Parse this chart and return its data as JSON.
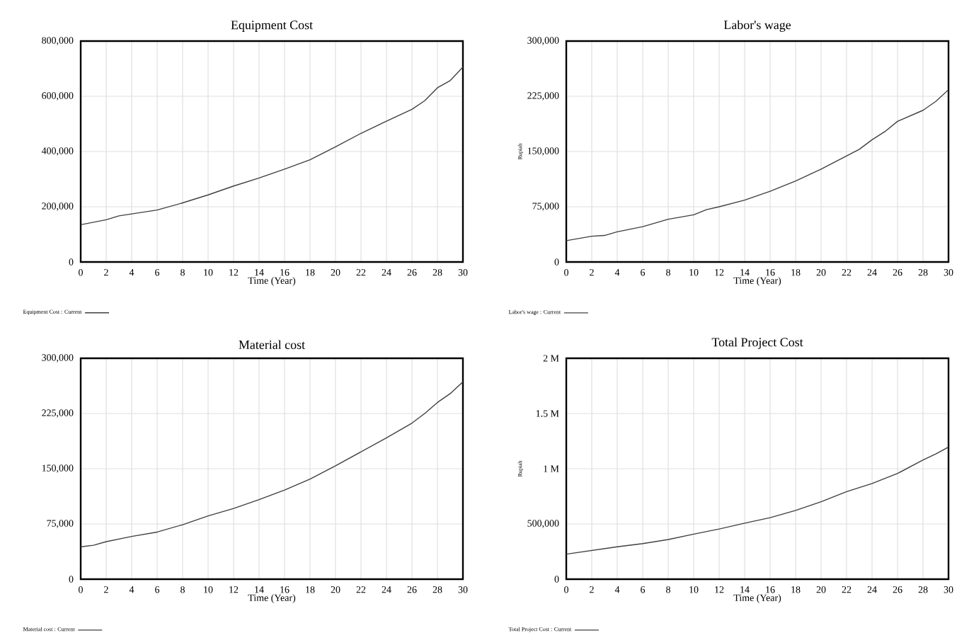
{
  "chart_data": [
    {
      "type": "line",
      "title": "Equipment Cost",
      "xlabel": "Time (Year)",
      "grid": true,
      "legend": "bottom",
      "x": [
        0,
        2,
        3,
        4,
        6,
        8,
        10,
        12,
        14,
        16,
        18,
        20,
        22,
        24,
        26,
        27,
        28,
        29,
        30
      ],
      "series": [
        {
          "name": "Equipment Cost : Current",
          "color": "#404040",
          "values": [
            135000,
            153000,
            167000,
            174000,
            188000,
            214000,
            243000,
            275000,
            304000,
            336000,
            370000,
            417000,
            466000,
            510000,
            553000,
            584000,
            631000,
            657000,
            706000
          ]
        }
      ],
      "xlim": [
        0,
        30
      ],
      "xticks": [
        0,
        2,
        4,
        6,
        8,
        10,
        12,
        14,
        16,
        18,
        20,
        22,
        24,
        26,
        28,
        30
      ],
      "ylim": [
        0,
        800000
      ],
      "yticks": [
        0,
        {
          "value": 200000,
          "label": "200,000"
        },
        {
          "value": 400000,
          "label": "400,000"
        },
        {
          "value": 600000,
          "label": "600,000"
        },
        {
          "value": 800000,
          "label": "800,000"
        }
      ]
    },
    {
      "type": "line",
      "title": "Labor's wage",
      "xlabel": "Time (Year)",
      "ylabel": "Rupiah",
      "grid": true,
      "legend": "bottom",
      "x": [
        0,
        2,
        3,
        4,
        6,
        8,
        10,
        11,
        12,
        14,
        16,
        18,
        20,
        22,
        23,
        24,
        25,
        26,
        28,
        29,
        30
      ],
      "series": [
        {
          "name": "Labor's wage : Current",
          "color": "#404040",
          "values": [
            29000,
            35000,
            36000,
            41000,
            48000,
            58000,
            64000,
            71000,
            75000,
            84000,
            96000,
            110000,
            126000,
            144000,
            153000,
            166000,
            177000,
            191000,
            206000,
            218000,
            234000
          ]
        }
      ],
      "xlim": [
        0,
        30
      ],
      "xticks": [
        0,
        2,
        4,
        6,
        8,
        10,
        12,
        14,
        16,
        18,
        20,
        22,
        24,
        26,
        28,
        30
      ],
      "ylim": [
        0,
        300000
      ],
      "yticks": [
        0,
        {
          "value": 75000,
          "label": "75,000"
        },
        {
          "value": 150000,
          "label": "150,000"
        },
        {
          "value": 225000,
          "label": "225,000"
        },
        {
          "value": 300000,
          "label": "300,000"
        }
      ]
    },
    {
      "type": "line",
      "title": "Material cost",
      "xlabel": "Time (Year)",
      "grid": true,
      "legend": "bottom",
      "x": [
        0,
        1,
        2,
        4,
        6,
        8,
        10,
        12,
        14,
        16,
        18,
        20,
        22,
        24,
        26,
        27,
        28,
        29,
        30
      ],
      "series": [
        {
          "name": "Material cost : Current",
          "color": "#404040",
          "values": [
            44000,
            46000,
            51000,
            58000,
            64000,
            74000,
            86000,
            96000,
            108000,
            121000,
            136000,
            154000,
            173000,
            192000,
            212000,
            225000,
            240000,
            252000,
            268000
          ]
        }
      ],
      "xlim": [
        0,
        30
      ],
      "xticks": [
        0,
        2,
        4,
        6,
        8,
        10,
        12,
        14,
        16,
        18,
        20,
        22,
        24,
        26,
        28,
        30
      ],
      "ylim": [
        0,
        300000
      ],
      "yticks": [
        0,
        {
          "value": 75000,
          "label": "75,000"
        },
        {
          "value": 150000,
          "label": "150,000"
        },
        {
          "value": 225000,
          "label": "225,000"
        },
        {
          "value": 300000,
          "label": "300,000"
        }
      ]
    },
    {
      "type": "line",
      "title": "Total Project Cost",
      "xlabel": "Time (Year)",
      "ylabel": "Rupiah",
      "grid": true,
      "legend": "bottom",
      "x": [
        0,
        2,
        4,
        6,
        8,
        10,
        12,
        14,
        16,
        18,
        20,
        22,
        24,
        26,
        28,
        29,
        30
      ],
      "series": [
        {
          "name": "Total Project Cost : Current",
          "color": "#404040",
          "values": [
            227000,
            260000,
            293000,
            322000,
            359000,
            408000,
            454000,
            507000,
            557000,
            623000,
            701000,
            792000,
            866000,
            957000,
            1080000,
            1134000,
            1196000
          ]
        }
      ],
      "xlim": [
        0,
        30
      ],
      "xticks": [
        0,
        2,
        4,
        6,
        8,
        10,
        12,
        14,
        16,
        18,
        20,
        22,
        24,
        26,
        28,
        30
      ],
      "ylim": [
        0,
        2000000
      ],
      "yticks": [
        0,
        {
          "value": 500000,
          "label": "500,000"
        },
        {
          "value": 1000000,
          "label": "1 M"
        },
        {
          "value": 1500000,
          "label": "1.5 M"
        },
        {
          "value": 2000000,
          "label": "2 M"
        }
      ]
    }
  ]
}
